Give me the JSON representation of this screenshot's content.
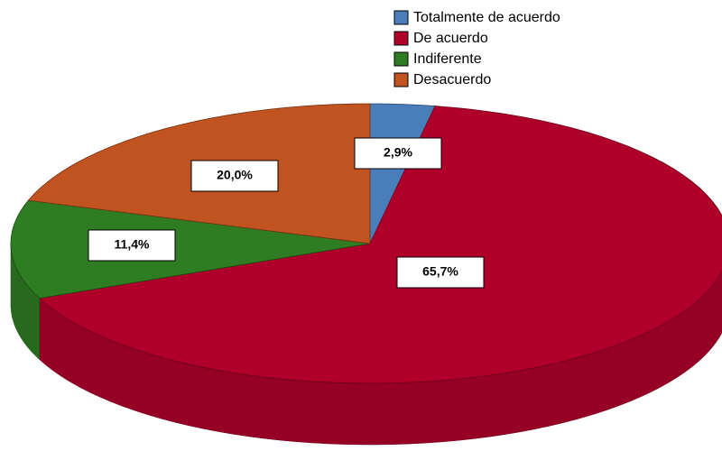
{
  "chart_data": {
    "type": "pie",
    "categories": [
      "Totalmente de acuerdo",
      "De acuerdo",
      "Indiferente",
      "Desacuerdo"
    ],
    "values": [
      2.9,
      65.7,
      11.4,
      20.0
    ],
    "value_labels": [
      "2,9%",
      "65,7%",
      "11,4%",
      "20,0%"
    ],
    "colors": [
      "#4a7ebb",
      "#b0002a",
      "#2e7d22",
      "#c0531f"
    ],
    "legend": "top-right"
  }
}
